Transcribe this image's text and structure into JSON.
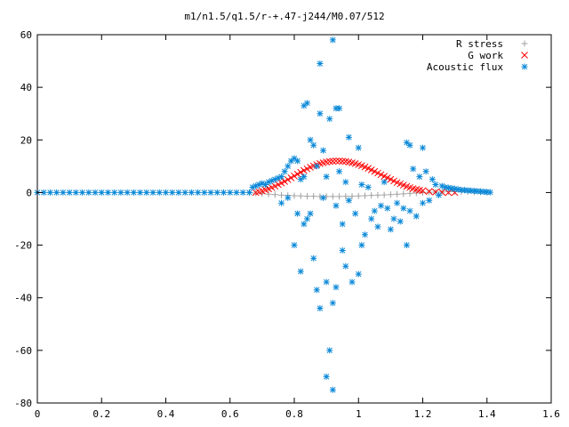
{
  "chart_data": {
    "type": "scatter",
    "title": "m1/n1.5/q1.5/r-+.47-j244/M0.07/512",
    "xlabel": "",
    "ylabel": "",
    "xlim": [
      0,
      1.6
    ],
    "ylim": [
      -80,
      60
    ],
    "x_ticks": [
      0,
      0.2,
      0.4,
      0.6,
      0.8,
      1,
      1.2,
      1.4,
      1.6
    ],
    "x_tick_labels": [
      "0",
      "0.2",
      "0.4",
      "0.6",
      "0.8",
      "1",
      "1.2",
      "1.4",
      "1.6"
    ],
    "y_ticks": [
      -80,
      -60,
      -40,
      -20,
      0,
      20,
      40,
      60
    ],
    "y_tick_labels": [
      "-80",
      "-60",
      "-40",
      "-20",
      "0",
      "20",
      "40",
      "60"
    ],
    "grid": false,
    "legend": "top-right",
    "series": [
      {
        "name": "R stress",
        "marker": "plus",
        "color": "#a0a0a0",
        "points": [
          [
            0.66,
            0.0
          ],
          [
            0.68,
            -0.2
          ],
          [
            0.7,
            -0.4
          ],
          [
            0.72,
            -0.6
          ],
          [
            0.74,
            -0.8
          ],
          [
            0.76,
            -1.0
          ],
          [
            0.78,
            -1.1
          ],
          [
            0.8,
            -1.2
          ],
          [
            0.82,
            -1.3
          ],
          [
            0.84,
            -1.4
          ],
          [
            0.86,
            -1.4
          ],
          [
            0.88,
            -1.5
          ],
          [
            0.9,
            -1.5
          ],
          [
            0.92,
            -1.5
          ],
          [
            0.94,
            -1.5
          ],
          [
            0.96,
            -1.4
          ],
          [
            0.98,
            -1.4
          ],
          [
            1.0,
            -1.3
          ],
          [
            1.02,
            -1.2
          ],
          [
            1.04,
            -1.1
          ],
          [
            1.06,
            -1.0
          ],
          [
            1.08,
            -0.9
          ],
          [
            1.1,
            -0.8
          ],
          [
            1.12,
            -0.6
          ],
          [
            1.14,
            -0.5
          ],
          [
            1.16,
            -0.3
          ],
          [
            1.18,
            -0.2
          ],
          [
            1.2,
            0.0
          ],
          [
            1.22,
            0.1
          ],
          [
            1.24,
            0.2
          ],
          [
            1.26,
            0.2
          ],
          [
            1.28,
            0.3
          ],
          [
            1.3,
            0.3
          ],
          [
            1.32,
            0.3
          ],
          [
            1.34,
            0.3
          ],
          [
            1.36,
            0.2
          ],
          [
            1.38,
            0.2
          ],
          [
            1.4,
            0.1
          ]
        ]
      },
      {
        "name": "G work",
        "marker": "cross",
        "color": "#ff0000",
        "points": [
          [
            0.68,
            0.0
          ],
          [
            0.69,
            0.3
          ],
          [
            0.7,
            0.6
          ],
          [
            0.71,
            1.0
          ],
          [
            0.72,
            1.4
          ],
          [
            0.73,
            1.9
          ],
          [
            0.74,
            2.4
          ],
          [
            0.75,
            3.0
          ],
          [
            0.76,
            3.6
          ],
          [
            0.77,
            4.2
          ],
          [
            0.78,
            4.9
          ],
          [
            0.79,
            5.6
          ],
          [
            0.8,
            6.3
          ],
          [
            0.81,
            7.0
          ],
          [
            0.82,
            7.7
          ],
          [
            0.83,
            8.4
          ],
          [
            0.84,
            9.0
          ],
          [
            0.85,
            9.6
          ],
          [
            0.86,
            10.1
          ],
          [
            0.87,
            10.6
          ],
          [
            0.88,
            11.0
          ],
          [
            0.89,
            11.3
          ],
          [
            0.9,
            11.6
          ],
          [
            0.91,
            11.8
          ],
          [
            0.92,
            11.9
          ],
          [
            0.93,
            12.0
          ],
          [
            0.94,
            12.0
          ],
          [
            0.95,
            11.9
          ],
          [
            0.96,
            11.8
          ],
          [
            0.97,
            11.6
          ],
          [
            0.98,
            11.3
          ],
          [
            0.99,
            11.0
          ],
          [
            1.0,
            10.6
          ],
          [
            1.01,
            10.2
          ],
          [
            1.02,
            9.7
          ],
          [
            1.03,
            9.2
          ],
          [
            1.04,
            8.6
          ],
          [
            1.05,
            8.0
          ],
          [
            1.06,
            7.4
          ],
          [
            1.07,
            6.8
          ],
          [
            1.08,
            6.2
          ],
          [
            1.09,
            5.6
          ],
          [
            1.1,
            5.0
          ],
          [
            1.11,
            4.4
          ],
          [
            1.12,
            3.8
          ],
          [
            1.13,
            3.3
          ],
          [
            1.14,
            2.8
          ],
          [
            1.15,
            2.3
          ],
          [
            1.16,
            1.9
          ],
          [
            1.17,
            1.5
          ],
          [
            1.18,
            1.2
          ],
          [
            1.19,
            0.9
          ],
          [
            1.2,
            0.7
          ],
          [
            1.22,
            0.4
          ],
          [
            1.24,
            0.2
          ],
          [
            1.26,
            0.1
          ],
          [
            1.28,
            0.0
          ],
          [
            1.3,
            0.0
          ]
        ]
      },
      {
        "name": "Acoustic flux",
        "marker": "star",
        "color": "#0a88d8",
        "points": [
          [
            0.0,
            0.0
          ],
          [
            0.02,
            0.0
          ],
          [
            0.04,
            0.0
          ],
          [
            0.06,
            0.0
          ],
          [
            0.08,
            0.0
          ],
          [
            0.1,
            0.0
          ],
          [
            0.12,
            0.0
          ],
          [
            0.14,
            0.0
          ],
          [
            0.16,
            0.0
          ],
          [
            0.18,
            0.0
          ],
          [
            0.2,
            0.0
          ],
          [
            0.22,
            0.0
          ],
          [
            0.24,
            0.0
          ],
          [
            0.26,
            0.0
          ],
          [
            0.28,
            0.0
          ],
          [
            0.3,
            0.0
          ],
          [
            0.32,
            0.0
          ],
          [
            0.34,
            0.0
          ],
          [
            0.36,
            0.0
          ],
          [
            0.38,
            0.0
          ],
          [
            0.4,
            0.0
          ],
          [
            0.42,
            0.0
          ],
          [
            0.44,
            0.0
          ],
          [
            0.46,
            0.0
          ],
          [
            0.48,
            0.0
          ],
          [
            0.5,
            0.0
          ],
          [
            0.52,
            0.0
          ],
          [
            0.54,
            0.0
          ],
          [
            0.56,
            0.0
          ],
          [
            0.58,
            0.0
          ],
          [
            0.6,
            0.0
          ],
          [
            0.62,
            0.0
          ],
          [
            0.64,
            0.0
          ],
          [
            0.66,
            0.0
          ],
          [
            0.67,
            2.0
          ],
          [
            0.68,
            2.5
          ],
          [
            0.69,
            3.0
          ],
          [
            0.7,
            3.5
          ],
          [
            0.71,
            3.0
          ],
          [
            0.72,
            4.0
          ],
          [
            0.73,
            4.5
          ],
          [
            0.74,
            5.0
          ],
          [
            0.75,
            5.5
          ],
          [
            0.76,
            6.0
          ],
          [
            0.77,
            8.0
          ],
          [
            0.78,
            10.0
          ],
          [
            0.79,
            12.0
          ],
          [
            0.8,
            13.0
          ],
          [
            0.81,
            12.0
          ],
          [
            0.82,
            5.0
          ],
          [
            0.83,
            6.0
          ],
          [
            0.76,
            -4.0
          ],
          [
            0.78,
            -2.0
          ],
          [
            0.8,
            -20.0
          ],
          [
            0.81,
            -8.0
          ],
          [
            0.82,
            -30.0
          ],
          [
            0.83,
            -12.0
          ],
          [
            0.83,
            33.0
          ],
          [
            0.84,
            34.0
          ],
          [
            0.84,
            -10.0
          ],
          [
            0.85,
            20.0
          ],
          [
            0.85,
            -8.0
          ],
          [
            0.86,
            -25.0
          ],
          [
            0.86,
            18.0
          ],
          [
            0.87,
            -37.0
          ],
          [
            0.87,
            10.0
          ],
          [
            0.88,
            49.0
          ],
          [
            0.88,
            -44.0
          ],
          [
            0.88,
            30.0
          ],
          [
            0.89,
            16.0
          ],
          [
            0.89,
            -2.0
          ],
          [
            0.9,
            -34.0
          ],
          [
            0.9,
            6.0
          ],
          [
            0.9,
            -70.0
          ],
          [
            0.91,
            -60.0
          ],
          [
            0.91,
            28.0
          ],
          [
            0.92,
            58.0
          ],
          [
            0.92,
            -75.0
          ],
          [
            0.92,
            -42.0
          ],
          [
            0.93,
            32.0
          ],
          [
            0.93,
            -36.0
          ],
          [
            0.93,
            -5.0
          ],
          [
            0.94,
            32.0
          ],
          [
            0.94,
            8.0
          ],
          [
            0.95,
            -12.0
          ],
          [
            0.95,
            -22.0
          ],
          [
            0.96,
            -28.0
          ],
          [
            0.96,
            4.0
          ],
          [
            0.97,
            21.0
          ],
          [
            0.97,
            -3.0
          ],
          [
            0.98,
            -34.0
          ],
          [
            0.99,
            -8.0
          ],
          [
            1.0,
            -31.0
          ],
          [
            1.0,
            17.0
          ],
          [
            1.01,
            -20.0
          ],
          [
            1.01,
            3.0
          ],
          [
            1.02,
            -16.0
          ],
          [
            1.03,
            2.0
          ],
          [
            1.04,
            -10.0
          ],
          [
            1.05,
            -7.0
          ],
          [
            1.06,
            -13.0
          ],
          [
            1.07,
            -5.0
          ],
          [
            1.08,
            4.0
          ],
          [
            1.09,
            -6.0
          ],
          [
            1.1,
            -14.0
          ],
          [
            1.11,
            -10.0
          ],
          [
            1.12,
            -4.0
          ],
          [
            1.13,
            -11.0
          ],
          [
            1.14,
            -6.0
          ],
          [
            1.15,
            19.0
          ],
          [
            1.15,
            -20.0
          ],
          [
            1.16,
            18.0
          ],
          [
            1.16,
            -7.0
          ],
          [
            1.17,
            9.0
          ],
          [
            1.18,
            -9.0
          ],
          [
            1.19,
            6.0
          ],
          [
            1.2,
            17.0
          ],
          [
            1.2,
            -4.0
          ],
          [
            1.21,
            8.0
          ],
          [
            1.22,
            -3.0
          ],
          [
            1.23,
            5.0
          ],
          [
            1.24,
            3.0
          ],
          [
            1.25,
            -1.0
          ],
          [
            1.26,
            2.5
          ],
          [
            1.27,
            2.0
          ],
          [
            1.28,
            1.8
          ],
          [
            1.29,
            1.6
          ],
          [
            1.3,
            1.4
          ],
          [
            1.31,
            1.2
          ],
          [
            1.32,
            1.0
          ],
          [
            1.33,
            0.9
          ],
          [
            1.34,
            0.8
          ],
          [
            1.35,
            0.7
          ],
          [
            1.36,
            0.6
          ],
          [
            1.37,
            0.5
          ],
          [
            1.38,
            0.4
          ],
          [
            1.39,
            0.3
          ],
          [
            1.4,
            0.2
          ],
          [
            1.41,
            0.1
          ]
        ]
      }
    ]
  }
}
